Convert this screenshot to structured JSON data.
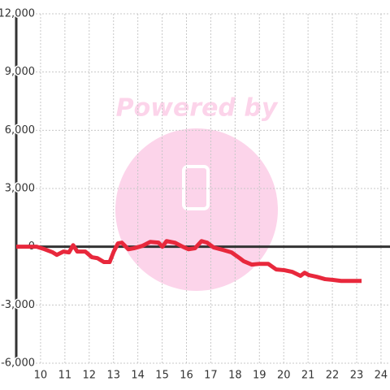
{
  "chart_data": {
    "type": "line",
    "watermark": "Powered by",
    "x": [
      9,
      9.84,
      10.17,
      10.5,
      10.67,
      10.94,
      11.17,
      11.34,
      11.51,
      11.84,
      12.11,
      12.34,
      12.61,
      12.84,
      13.01,
      13.18,
      13.34,
      13.61,
      13.84,
      14.18,
      14.51,
      14.85,
      15.01,
      15.18,
      15.52,
      15.85,
      16.08,
      16.35,
      16.62,
      16.85,
      17.12,
      17.52,
      17.85,
      18.19,
      18.36,
      18.69,
      19.02,
      19.36,
      19.69,
      20.03,
      20.36,
      20.69,
      20.86,
      21.03,
      21.36,
      21.7,
      22.03,
      22.36,
      23.2
    ],
    "series": [
      {
        "color": "#e8283c",
        "values": [
          0,
          0,
          -130,
          -290,
          -420,
          -250,
          -290,
          80,
          -250,
          -250,
          -540,
          -590,
          -790,
          -790,
          -250,
          170,
          210,
          -130,
          -80,
          40,
          250,
          210,
          0,
          290,
          210,
          0,
          -130,
          -80,
          290,
          210,
          -40,
          -170,
          -290,
          -590,
          -750,
          -920,
          -880,
          -880,
          -1170,
          -1210,
          -1300,
          -1500,
          -1340,
          -1460,
          -1550,
          -1670,
          -1710,
          -1760,
          -1760
        ]
      }
    ],
    "xlim": [
      9,
      24.37
    ],
    "xticks": [
      10,
      11,
      12,
      13,
      14,
      15,
      16,
      17,
      18,
      19,
      20,
      21,
      22,
      23,
      24
    ],
    "ylim": [
      -6000,
      12000
    ],
    "yticks": [
      {
        "value": -6000,
        "label": "-6,000"
      },
      {
        "value": -3000,
        "label": "-3,000"
      },
      0,
      {
        "value": 3000,
        "label": "3,000"
      },
      {
        "value": 6000,
        "label": "6,000"
      },
      {
        "value": 9000,
        "label": "9,000"
      },
      {
        "value": 12000,
        "label": "12,000"
      }
    ],
    "grid": true
  }
}
